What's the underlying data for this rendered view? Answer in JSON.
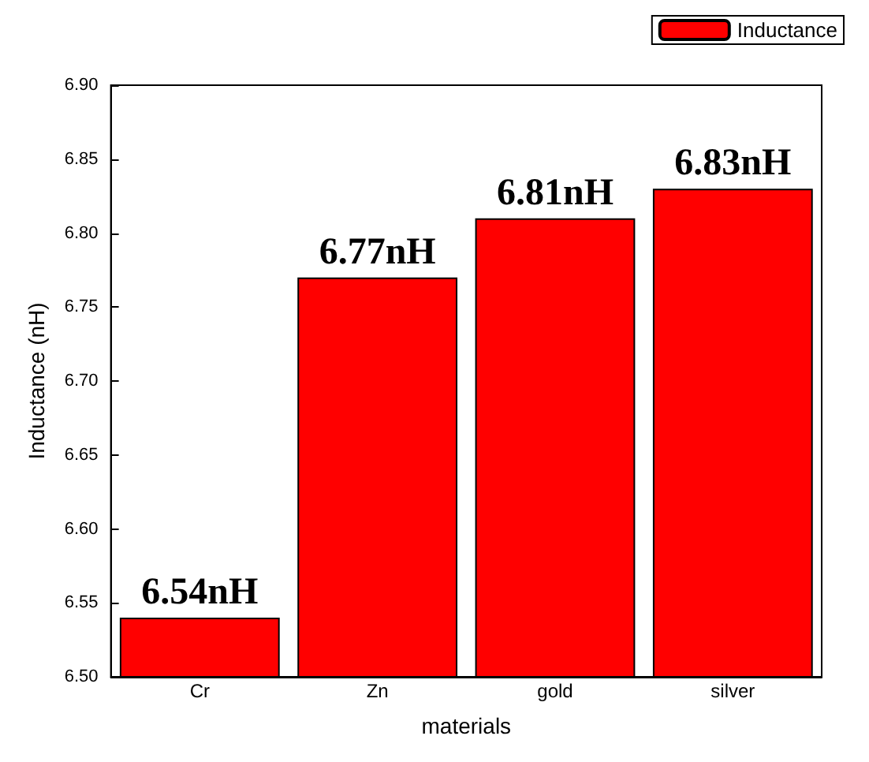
{
  "chart_data": {
    "type": "bar",
    "xlabel": "materials",
    "ylabel": "Inductance (nH)",
    "categories": [
      "Cr",
      "Zn",
      "gold",
      "silver"
    ],
    "series": [
      {
        "name": "Inductance",
        "color": "#ff0000",
        "values": [
          6.54,
          6.77,
          6.81,
          6.83
        ],
        "value_labels": [
          "6.54nH",
          "6.77nH",
          "6.81nH",
          "6.83nH"
        ]
      }
    ],
    "ylim": [
      6.5,
      6.9
    ],
    "yticks": [
      {
        "value": 6.5,
        "label": "6.50"
      },
      {
        "value": 6.55,
        "label": "6.55"
      },
      {
        "value": 6.6,
        "label": "6.60"
      },
      {
        "value": 6.65,
        "label": "6.65"
      },
      {
        "value": 6.7,
        "label": "6.70"
      },
      {
        "value": 6.75,
        "label": "6.75"
      },
      {
        "value": 6.8,
        "label": "6.80"
      },
      {
        "value": 6.85,
        "label": "6.85"
      },
      {
        "value": 6.9,
        "label": "6.90"
      }
    ],
    "grid": false,
    "legend": "top right"
  }
}
